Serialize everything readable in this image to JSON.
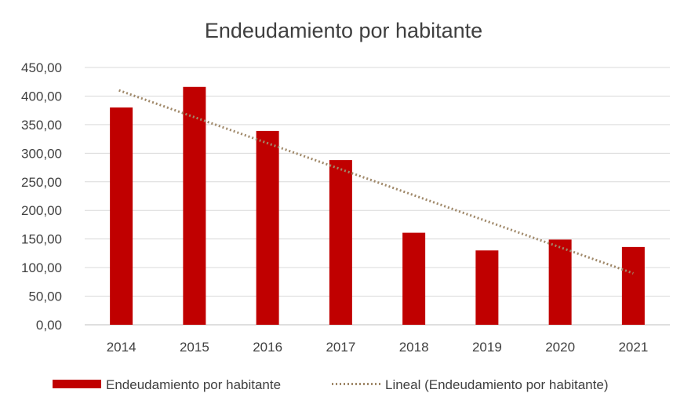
{
  "chart_data": {
    "type": "bar",
    "title": "Endeudamiento por habitante",
    "xlabel": "",
    "ylabel": "",
    "categories": [
      "2014",
      "2015",
      "2016",
      "2017",
      "2018",
      "2019",
      "2020",
      "2021"
    ],
    "series": [
      {
        "name": "Endeudamiento por habitante",
        "values": [
          380,
          416,
          339,
          288,
          161,
          130,
          149,
          136
        ],
        "color": "#c00000"
      }
    ],
    "trendline": {
      "name": "Lineal (Endeudamiento por habitante)",
      "type": "linear",
      "start": 410,
      "end": 90,
      "color": "#a0896a"
    },
    "ylim": [
      0,
      450
    ],
    "yticks": [
      "0,00",
      "50,00",
      "100,00",
      "150,00",
      "200,00",
      "250,00",
      "300,00",
      "350,00",
      "400,00",
      "450,00"
    ],
    "grid": true,
    "legend_position": "bottom"
  }
}
